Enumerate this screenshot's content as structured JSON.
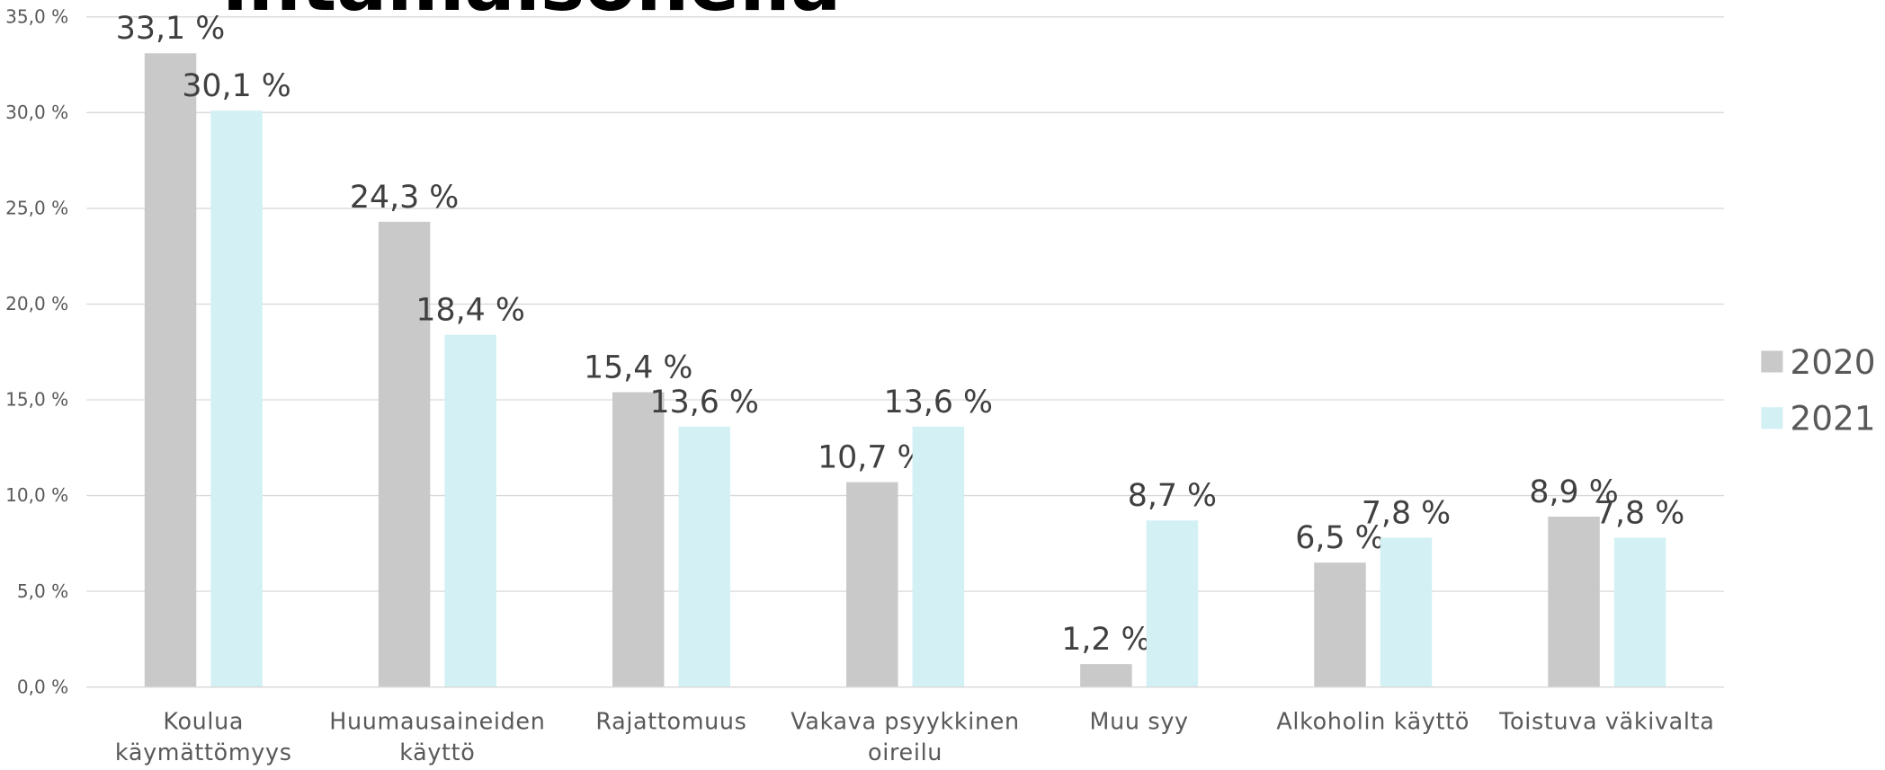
{
  "chart_data": {
    "type": "bar",
    "title": "intamaisohella",
    "categories": [
      "Koulua käymättömyys",
      "Huumausaineiden käyttö",
      "Rajattomuus",
      "Vakava psyykkinen oireilu",
      "Muu syy",
      "Alkoholin käyttö",
      "Toistuva väkivalta"
    ],
    "series": [
      {
        "name": "2020",
        "color": "#c9c9c9",
        "values": [
          33.1,
          24.3,
          15.4,
          10.7,
          1.2,
          6.5,
          8.9
        ],
        "value_labels": [
          "33,1 %",
          "24,3 %",
          "15,4 %",
          "10,7 %",
          "1,2 %",
          "6,5 %",
          "8,9 %"
        ]
      },
      {
        "name": "2021",
        "color": "#d3f0f4",
        "values": [
          30.1,
          18.4,
          13.6,
          13.6,
          8.7,
          7.8,
          7.8
        ],
        "value_labels": [
          "30,1 %",
          "18,4 %",
          "13,6 %",
          "13,6 %",
          "8,7 %",
          "7,8 %",
          "7,8 %"
        ]
      }
    ],
    "ylim": [
      0,
      35
    ],
    "yticks": [
      {
        "value": 0,
        "label": "0,0 %"
      },
      {
        "value": 5,
        "label": "5,0 %"
      },
      {
        "value": 10,
        "label": "10,0 %"
      },
      {
        "value": 15,
        "label": "15,0 %"
      },
      {
        "value": 20,
        "label": "20,0 %"
      },
      {
        "value": 25,
        "label": "25,0 %"
      },
      {
        "value": 30,
        "label": "30,0 %"
      },
      {
        "value": 35,
        "label": "35,0 %"
      }
    ],
    "grid": true,
    "legend": "right"
  }
}
